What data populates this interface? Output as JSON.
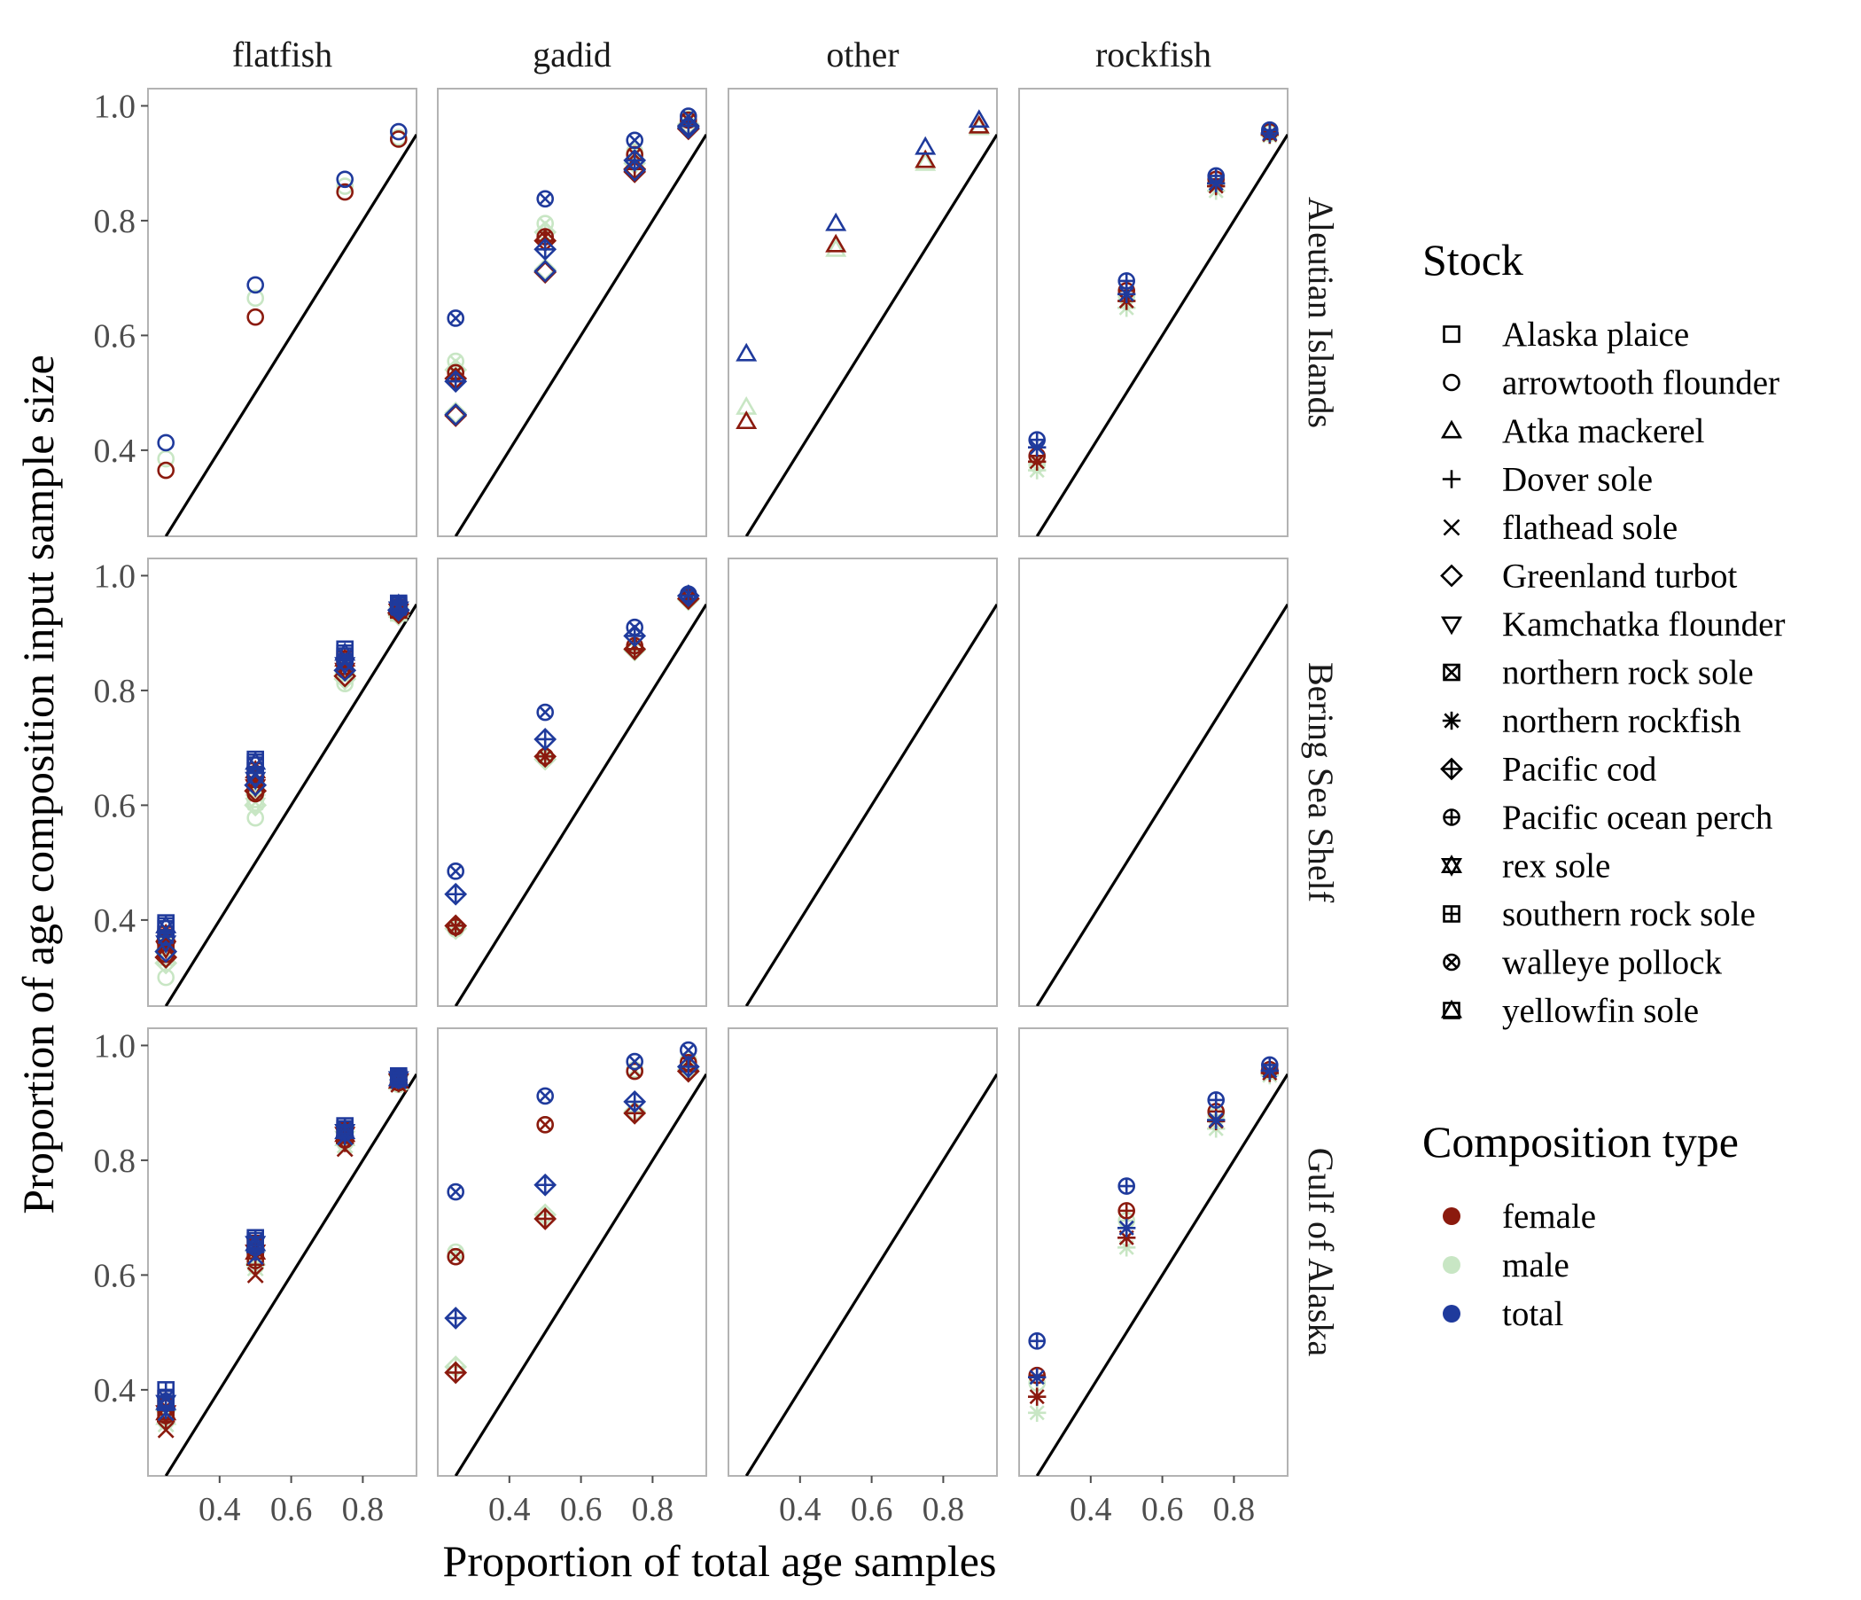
{
  "chart_data": {
    "type": "scatter",
    "xlabel": "Proportion of total age samples",
    "ylabel": "Proportion of age composition input sample size",
    "columns": [
      "flatfish",
      "gadid",
      "other",
      "rockfish"
    ],
    "rows": [
      "Aleutian Islands",
      "Bering Sea Shelf",
      "Gulf of Alaska"
    ],
    "xlim": [
      0.2,
      0.95
    ],
    "ylim": [
      0.25,
      1.03
    ],
    "x_ticks": [
      0.4,
      0.6,
      0.8
    ],
    "x_tick_labels": [
      "0.4",
      "0.6",
      "0.8"
    ],
    "y_ticks": [
      0.4,
      0.6,
      0.8,
      1.0
    ],
    "y_tick_labels": [
      "0.4",
      "0.6",
      "0.8",
      "1.0"
    ],
    "reference_line": "y = x",
    "grid": false,
    "legend_placement": "right",
    "legends": {
      "stock": {
        "title": "Stock",
        "entries": [
          {
            "label": "Alaska plaice",
            "shape": "square"
          },
          {
            "label": "arrowtooth flounder",
            "shape": "circle"
          },
          {
            "label": "Atka mackerel",
            "shape": "triangle"
          },
          {
            "label": "Dover sole",
            "shape": "plus"
          },
          {
            "label": "flathead sole",
            "shape": "cross"
          },
          {
            "label": "Greenland turbot",
            "shape": "diamond"
          },
          {
            "label": "Kamchatka flounder",
            "shape": "triangle-down"
          },
          {
            "label": "northern rock sole",
            "shape": "square-cross"
          },
          {
            "label": "northern rockfish",
            "shape": "asterisk"
          },
          {
            "label": "Pacific cod",
            "shape": "diamond-plus"
          },
          {
            "label": "Pacific ocean perch",
            "shape": "circle-plus"
          },
          {
            "label": "rex sole",
            "shape": "star-of-david"
          },
          {
            "label": "southern rock sole",
            "shape": "square-plus"
          },
          {
            "label": "walleye pollock",
            "shape": "circle-cross"
          },
          {
            "label": "yellowfin sole",
            "shape": "square-triangle"
          }
        ]
      },
      "composition": {
        "title": "Composition type",
        "entries": [
          {
            "label": "female",
            "color": "#8B1A0E"
          },
          {
            "label": "male",
            "color": "#C8E6C4"
          },
          {
            "label": "total",
            "color": "#1F3A9C"
          }
        ]
      }
    },
    "colors": {
      "female": "#8B1A0E",
      "male": "#C8E6C4",
      "total": "#1F3A9C"
    },
    "x_levels": [
      0.25,
      0.5,
      0.75,
      0.9
    ],
    "series": [
      {
        "row": "Aleutian Islands",
        "col": "flatfish",
        "stock": "arrowtooth flounder",
        "female": [
          0.365,
          0.632,
          0.85,
          0.942
        ],
        "male": [
          0.385,
          0.665,
          0.86,
          0.945
        ],
        "total": [
          0.413,
          0.688,
          0.872,
          0.955
        ]
      },
      {
        "row": "Aleutian Islands",
        "col": "gadid",
        "stock": "Greenland turbot",
        "female": [
          0.46,
          0.71,
          0.885,
          0.96
        ],
        "male": [
          0.465,
          0.715,
          0.89,
          0.962
        ],
        "total": [
          0.462,
          0.712,
          0.888,
          0.962
        ]
      },
      {
        "row": "Aleutian Islands",
        "col": "gadid",
        "stock": "Pacific cod",
        "female": [
          0.525,
          0.765,
          0.89,
          0.965
        ],
        "male": [
          0.54,
          0.78,
          0.9,
          0.968
        ],
        "total": [
          0.52,
          0.75,
          0.905,
          0.965
        ]
      },
      {
        "row": "Aleutian Islands",
        "col": "gadid",
        "stock": "walleye pollock",
        "female": [
          0.535,
          0.772,
          0.915,
          0.975
        ],
        "male": [
          0.555,
          0.795,
          0.92,
          0.977
        ],
        "total": [
          0.63,
          0.838,
          0.94,
          0.982
        ]
      },
      {
        "row": "Aleutian Islands",
        "col": "other",
        "stock": "Atka mackerel",
        "female": [
          0.45,
          0.758,
          0.905,
          0.965
        ],
        "male": [
          0.475,
          0.75,
          0.9,
          0.962
        ],
        "total": [
          0.568,
          0.795,
          0.928,
          0.975
        ]
      },
      {
        "row": "Aleutian Islands",
        "col": "rockfish",
        "stock": "northern rockfish",
        "female": [
          0.38,
          0.66,
          0.86,
          0.95
        ],
        "male": [
          0.365,
          0.648,
          0.852,
          0.948
        ],
        "total": [
          0.405,
          0.672,
          0.865,
          0.952
        ]
      },
      {
        "row": "Aleutian Islands",
        "col": "rockfish",
        "stock": "Pacific ocean perch",
        "female": [
          0.39,
          0.678,
          0.872,
          0.955
        ],
        "male": [
          0.375,
          0.668,
          0.865,
          0.952
        ],
        "total": [
          0.418,
          0.695,
          0.878,
          0.958
        ]
      },
      {
        "row": "Bering Sea Shelf",
        "col": "flatfish",
        "stock": "Alaska plaice",
        "female": [
          0.36,
          0.645,
          0.842,
          0.94
        ],
        "male": [
          0.335,
          0.61,
          0.83,
          0.935
        ],
        "total": [
          0.395,
          0.68,
          0.872,
          0.952
        ]
      },
      {
        "row": "Bering Sea Shelf",
        "col": "flatfish",
        "stock": "arrowtooth flounder",
        "female": [
          0.34,
          0.62,
          0.835,
          0.938
        ],
        "male": [
          0.3,
          0.578,
          0.812,
          0.932
        ],
        "total": [
          0.37,
          0.65,
          0.85,
          0.945
        ]
      },
      {
        "row": "Bering Sea Shelf",
        "col": "flatfish",
        "stock": "flathead sole",
        "female": [
          0.365,
          0.64,
          0.84,
          0.94
        ],
        "male": [
          0.345,
          0.605,
          0.825,
          0.936
        ],
        "total": [
          0.372,
          0.655,
          0.848,
          0.944
        ]
      },
      {
        "row": "Bering Sea Shelf",
        "col": "flatfish",
        "stock": "Greenland turbot",
        "female": [
          0.335,
          0.625,
          0.825,
          0.935
        ],
        "male": [
          0.325,
          0.6,
          0.82,
          0.932
        ],
        "total": [
          0.345,
          0.635,
          0.835,
          0.94
        ]
      },
      {
        "row": "Bering Sea Shelf",
        "col": "flatfish",
        "stock": "Kamchatka flounder",
        "female": [
          0.35,
          0.632,
          0.835,
          0.938
        ],
        "male": [
          0.33,
          0.6,
          0.818,
          0.933
        ],
        "total": [
          0.36,
          0.645,
          0.845,
          0.942
        ]
      },
      {
        "row": "Bering Sea Shelf",
        "col": "flatfish",
        "stock": "northern rock sole",
        "female": [
          0.37,
          0.652,
          0.85,
          0.942
        ],
        "male": [
          0.355,
          0.625,
          0.835,
          0.938
        ],
        "total": [
          0.385,
          0.67,
          0.86,
          0.948
        ]
      },
      {
        "row": "Bering Sea Shelf",
        "col": "flatfish",
        "stock": "yellowfin sole",
        "female": [
          0.375,
          0.66,
          0.855,
          0.944
        ],
        "male": [
          0.36,
          0.63,
          0.84,
          0.94
        ],
        "total": [
          0.39,
          0.675,
          0.865,
          0.95
        ]
      },
      {
        "row": "Bering Sea Shelf",
        "col": "gadid",
        "stock": "Pacific cod",
        "female": [
          0.39,
          0.685,
          0.872,
          0.96
        ],
        "male": [
          0.385,
          0.68,
          0.87,
          0.958
        ],
        "total": [
          0.445,
          0.715,
          0.895,
          0.965
        ]
      },
      {
        "row": "Bering Sea Shelf",
        "col": "gadid",
        "stock": "walleye pollock",
        "female": [
          0.388,
          0.685,
          0.878,
          0.962
        ],
        "male": [
          0.384,
          0.682,
          0.875,
          0.96
        ],
        "total": [
          0.485,
          0.762,
          0.91,
          0.968
        ]
      },
      {
        "row": "Gulf of Alaska",
        "col": "flatfish",
        "stock": "arrowtooth flounder",
        "female": [
          0.355,
          0.625,
          0.835,
          0.935
        ],
        "male": [
          0.345,
          0.615,
          0.83,
          0.932
        ],
        "total": [
          0.38,
          0.648,
          0.848,
          0.94
        ]
      },
      {
        "row": "Gulf of Alaska",
        "col": "flatfish",
        "stock": "Dover sole",
        "female": [
          0.345,
          0.618,
          0.83,
          0.934
        ],
        "male": [
          0.35,
          0.622,
          0.835,
          0.936
        ],
        "total": [
          0.365,
          0.64,
          0.842,
          0.94
        ]
      },
      {
        "row": "Gulf of Alaska",
        "col": "flatfish",
        "stock": "flathead sole",
        "female": [
          0.33,
          0.6,
          0.82,
          0.932
        ],
        "male": [
          0.34,
          0.612,
          0.826,
          0.934
        ],
        "total": [
          0.36,
          0.632,
          0.84,
          0.938
        ]
      },
      {
        "row": "Gulf of Alaska",
        "col": "flatfish",
        "stock": "northern rock sole",
        "female": [
          0.37,
          0.648,
          0.848,
          0.94
        ],
        "male": [
          0.36,
          0.632,
          0.84,
          0.937
        ],
        "total": [
          0.385,
          0.66,
          0.855,
          0.944
        ]
      },
      {
        "row": "Gulf of Alaska",
        "col": "flatfish",
        "stock": "rex sole",
        "female": [
          0.36,
          0.64,
          0.845,
          0.938
        ],
        "male": [
          0.352,
          0.63,
          0.838,
          0.936
        ],
        "total": [
          0.378,
          0.655,
          0.85,
          0.942
        ]
      },
      {
        "row": "Gulf of Alaska",
        "col": "flatfish",
        "stock": "southern rock sole",
        "female": [
          0.385,
          0.655,
          0.852,
          0.942
        ],
        "male": [
          0.37,
          0.64,
          0.845,
          0.939
        ],
        "total": [
          0.4,
          0.665,
          0.86,
          0.947
        ]
      },
      {
        "row": "Gulf of Alaska",
        "col": "gadid",
        "stock": "Pacific cod",
        "female": [
          0.43,
          0.698,
          0.882,
          0.955
        ],
        "male": [
          0.44,
          0.705,
          0.885,
          0.958
        ],
        "total": [
          0.525,
          0.757,
          0.902,
          0.963
        ]
      },
      {
        "row": "Gulf of Alaska",
        "col": "gadid",
        "stock": "walleye pollock",
        "female": [
          0.632,
          0.862,
          0.955,
          0.97
        ],
        "male": [
          0.64,
          0.862,
          0.958,
          0.975
        ],
        "total": [
          0.745,
          0.912,
          0.972,
          0.992
        ]
      },
      {
        "row": "Gulf of Alaska",
        "col": "rockfish",
        "stock": "northern rockfish",
        "female": [
          0.388,
          0.665,
          0.868,
          0.952
        ],
        "male": [
          0.36,
          0.648,
          0.855,
          0.948
        ],
        "total": [
          0.422,
          0.682,
          0.87,
          0.956
        ]
      },
      {
        "row": "Gulf of Alaska",
        "col": "rockfish",
        "stock": "Pacific ocean perch",
        "female": [
          0.425,
          0.712,
          0.885,
          0.958
        ],
        "male": [
          0.412,
          0.695,
          0.878,
          0.955
        ],
        "total": [
          0.485,
          0.755,
          0.905,
          0.966
        ]
      }
    ]
  }
}
